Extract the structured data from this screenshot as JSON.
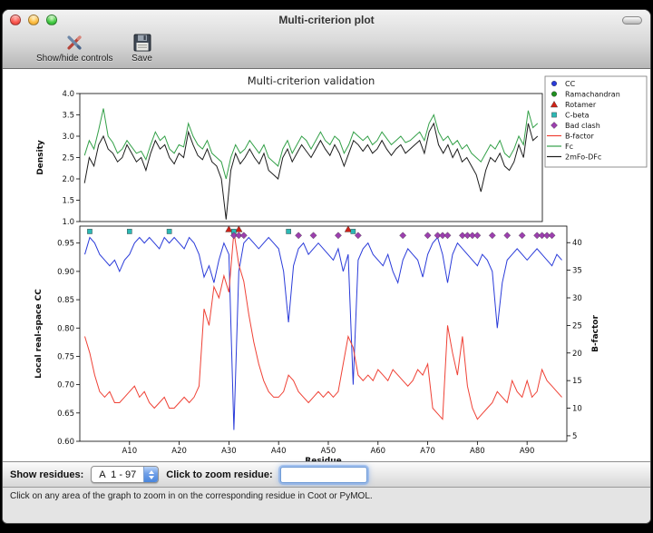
{
  "window": {
    "title": "Multi-criterion plot"
  },
  "toolbar": {
    "items": [
      {
        "label": "Show/hide controls",
        "icon": "tools-icon"
      },
      {
        "label": "Save",
        "icon": "save-icon"
      }
    ]
  },
  "controls": {
    "show_residues_label": "Show residues:",
    "residue_range_value": "A  1 - 97",
    "zoom_label": "Click to zoom residue:",
    "zoom_input_value": ""
  },
  "status_bar": {
    "text": "Click on any area of the graph to zoom in on the corresponding residue in Coot or PyMOL."
  },
  "chart_data": {
    "type": "line",
    "title": "Multi-criterion validation",
    "xlabel": "Residue",
    "residues": {
      "chain": "A",
      "start": 1,
      "end": 97
    },
    "x_ticks": [
      {
        "pos": 10,
        "label": "A10"
      },
      {
        "pos": 20,
        "label": "A20"
      },
      {
        "pos": 30,
        "label": "A30"
      },
      {
        "pos": 40,
        "label": "A40"
      },
      {
        "pos": 50,
        "label": "A50"
      },
      {
        "pos": 60,
        "label": "A60"
      },
      {
        "pos": 70,
        "label": "A70"
      },
      {
        "pos": 80,
        "label": "A80"
      },
      {
        "pos": 90,
        "label": "A90"
      }
    ],
    "top_plot": {
      "type": "line",
      "ylabel": "Density",
      "ylim": [
        1.0,
        4.0
      ],
      "yticks": [
        1.0,
        1.5,
        2.0,
        2.5,
        3.0,
        3.5,
        4.0
      ],
      "ytick_labels": [
        "1.0",
        "1.5",
        "2.0",
        "2.5",
        "3.0",
        "3.5",
        "4.0"
      ],
      "series": [
        {
          "name": "Fc",
          "color": "#33a048",
          "values": [
            2.55,
            2.9,
            2.7,
            3.15,
            3.65,
            3.0,
            2.85,
            2.6,
            2.7,
            2.9,
            2.75,
            2.6,
            2.65,
            2.45,
            2.8,
            3.1,
            2.9,
            3.0,
            2.7,
            2.6,
            2.8,
            2.75,
            3.3,
            3.0,
            2.8,
            2.7,
            2.9,
            2.6,
            2.5,
            2.4,
            2.0,
            2.5,
            2.8,
            2.6,
            2.7,
            2.9,
            2.75,
            2.6,
            2.8,
            2.5,
            2.4,
            2.3,
            2.7,
            2.9,
            2.6,
            2.8,
            3.0,
            2.9,
            2.7,
            2.9,
            3.1,
            2.9,
            2.8,
            3.0,
            2.9,
            2.6,
            2.8,
            3.1,
            3.0,
            2.9,
            3.0,
            2.8,
            2.9,
            3.1,
            2.95,
            2.8,
            2.9,
            3.0,
            2.85,
            2.9,
            3.0,
            3.1,
            2.9,
            3.3,
            3.5,
            3.1,
            2.9,
            3.0,
            2.8,
            2.9,
            2.7,
            2.8,
            2.6,
            2.5,
            2.4,
            2.6,
            2.8,
            2.7,
            2.9,
            2.6,
            2.5,
            2.7,
            3.0,
            2.8,
            3.6,
            3.2,
            3.3
          ]
        },
        {
          "name": "2mFo-DFc",
          "color": "#1c1c1c",
          "values": [
            1.9,
            2.5,
            2.3,
            2.8,
            3.0,
            2.7,
            2.6,
            2.4,
            2.5,
            2.8,
            2.6,
            2.4,
            2.5,
            2.2,
            2.6,
            2.9,
            2.7,
            2.8,
            2.5,
            2.35,
            2.6,
            2.5,
            3.1,
            2.8,
            2.55,
            2.45,
            2.7,
            2.4,
            2.3,
            2.0,
            1.05,
            2.2,
            2.6,
            2.35,
            2.5,
            2.7,
            2.5,
            2.35,
            2.6,
            2.2,
            2.1,
            2.0,
            2.5,
            2.7,
            2.4,
            2.6,
            2.8,
            2.65,
            2.5,
            2.7,
            2.9,
            2.7,
            2.55,
            2.8,
            2.6,
            2.3,
            2.6,
            2.9,
            2.8,
            2.65,
            2.8,
            2.6,
            2.7,
            2.9,
            2.7,
            2.55,
            2.7,
            2.8,
            2.6,
            2.7,
            2.8,
            2.9,
            2.6,
            3.1,
            3.3,
            2.8,
            2.6,
            2.8,
            2.5,
            2.7,
            2.4,
            2.5,
            2.3,
            2.1,
            1.7,
            2.2,
            2.5,
            2.4,
            2.6,
            2.3,
            2.2,
            2.4,
            2.8,
            2.5,
            3.3,
            2.9,
            3.0
          ]
        }
      ]
    },
    "bottom_plot": {
      "type": "line+scatter",
      "ylabel_left": "Local real-space CC",
      "ylim_left": [
        0.6,
        0.98
      ],
      "yticks_left": [
        0.6,
        0.65,
        0.7,
        0.75,
        0.8,
        0.85,
        0.9,
        0.95
      ],
      "ytick_labels_left": [
        "0.60",
        "0.65",
        "0.70",
        "0.75",
        "0.80",
        "0.85",
        "0.90",
        "0.95"
      ],
      "ylabel_right": "B-factor",
      "ylim_right": [
        4,
        43
      ],
      "yticks_right": [
        5,
        10,
        15,
        20,
        25,
        30,
        35,
        40
      ],
      "ytick_labels_right": [
        "5",
        "10",
        "15",
        "20",
        "25",
        "30",
        "35",
        "40"
      ],
      "series": [
        {
          "name": "CC",
          "axis": "left",
          "color": "#2a3bd9",
          "values": [
            0.93,
            0.96,
            0.95,
            0.93,
            0.92,
            0.91,
            0.92,
            0.9,
            0.92,
            0.93,
            0.95,
            0.96,
            0.95,
            0.96,
            0.95,
            0.94,
            0.96,
            0.95,
            0.96,
            0.95,
            0.94,
            0.96,
            0.95,
            0.93,
            0.89,
            0.91,
            0.88,
            0.92,
            0.95,
            0.93,
            0.62,
            0.9,
            0.95,
            0.96,
            0.95,
            0.94,
            0.95,
            0.96,
            0.95,
            0.94,
            0.9,
            0.81,
            0.91,
            0.94,
            0.95,
            0.93,
            0.94,
            0.95,
            0.94,
            0.93,
            0.92,
            0.94,
            0.9,
            0.93,
            0.7,
            0.92,
            0.94,
            0.95,
            0.93,
            0.92,
            0.91,
            0.93,
            0.9,
            0.88,
            0.92,
            0.94,
            0.93,
            0.92,
            0.89,
            0.93,
            0.95,
            0.96,
            0.93,
            0.88,
            0.93,
            0.95,
            0.94,
            0.93,
            0.92,
            0.91,
            0.93,
            0.92,
            0.9,
            0.8,
            0.88,
            0.92,
            0.93,
            0.94,
            0.93,
            0.92,
            0.93,
            0.94,
            0.93,
            0.92,
            0.91,
            0.93,
            0.92
          ]
        },
        {
          "name": "B-factor",
          "axis": "right",
          "color": "#ef4135",
          "values": [
            23,
            20,
            16,
            13,
            12,
            13,
            11,
            11,
            12,
            13,
            14,
            12,
            13,
            11,
            10,
            11,
            12,
            10,
            10,
            11,
            12,
            11,
            12,
            14,
            28,
            25,
            32,
            30,
            34,
            31,
            42,
            36,
            33,
            27,
            22,
            18,
            15,
            13,
            12,
            12,
            13,
            16,
            15,
            13,
            12,
            11,
            12,
            13,
            12,
            13,
            12,
            13,
            18,
            23,
            21,
            16,
            15,
            16,
            15,
            17,
            16,
            15,
            17,
            16,
            15,
            14,
            15,
            17,
            16,
            18,
            10,
            9,
            8,
            25,
            20,
            16,
            23,
            14,
            10,
            8,
            9,
            10,
            11,
            13,
            12,
            11,
            15,
            13,
            12,
            15,
            12,
            13,
            17,
            15,
            14,
            13,
            12
          ]
        }
      ],
      "markers": [
        {
          "name": "Ramachandran",
          "shape": "circle",
          "color": "#1f8f1f",
          "y": 0.9745,
          "residues": []
        },
        {
          "name": "Rotamer",
          "shape": "triangle",
          "color": "#cf2217",
          "y": 0.9745,
          "residues": [
            30,
            32,
            54
          ]
        },
        {
          "name": "C-beta",
          "shape": "square",
          "color": "#2cb8b4",
          "y": 0.9705,
          "residues": [
            2,
            10,
            18,
            31,
            42,
            55
          ]
        },
        {
          "name": "Bad clash",
          "shape": "diamond",
          "color": "#9c3fae",
          "y": 0.9635,
          "residues": [
            31,
            32,
            33,
            44,
            47,
            52,
            56,
            65,
            70,
            72,
            73,
            74,
            77,
            78,
            79,
            80,
            83,
            86,
            89,
            92,
            93,
            94,
            95
          ]
        }
      ]
    },
    "legend": {
      "position": "top-right",
      "entries": [
        {
          "label": "CC",
          "glyph": "circle",
          "color": "#2a3bd9"
        },
        {
          "label": "Ramachandran",
          "glyph": "circle",
          "color": "#1f8f1f"
        },
        {
          "label": "Rotamer",
          "glyph": "triangle",
          "color": "#cf2217"
        },
        {
          "label": "C-beta",
          "glyph": "square",
          "color": "#2cb8b4"
        },
        {
          "label": "Bad clash",
          "glyph": "diamond",
          "color": "#9c3fae"
        },
        {
          "label": "B-factor",
          "glyph": "line",
          "color": "#ef4135"
        },
        {
          "label": "Fc",
          "glyph": "line",
          "color": "#33a048"
        },
        {
          "label": "2mFo-DFc",
          "glyph": "line",
          "color": "#1c1c1c"
        }
      ]
    }
  }
}
